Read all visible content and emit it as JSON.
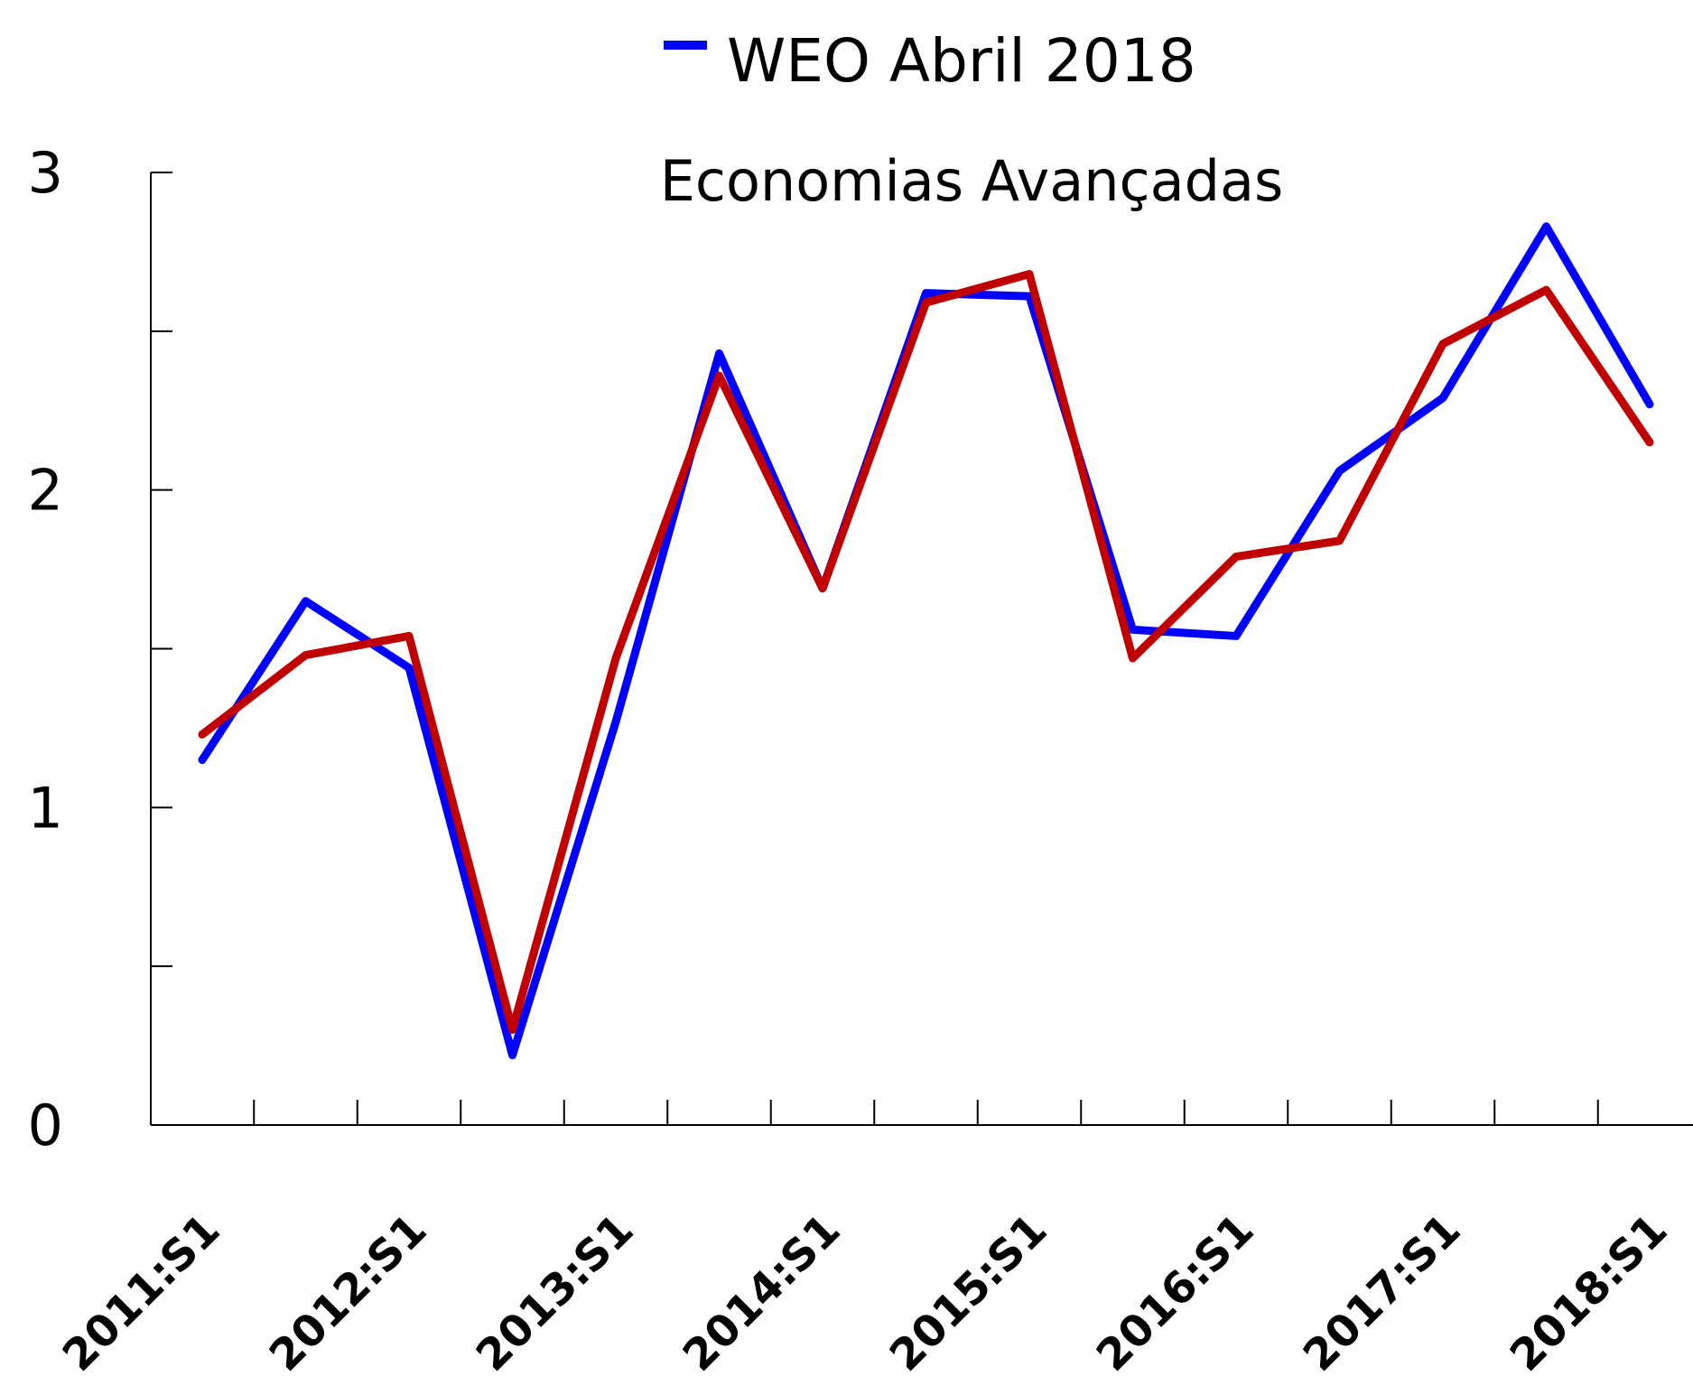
{
  "chart_data": {
    "type": "line",
    "title": "Economias Avançadas",
    "categories": [
      "2011:S1",
      null,
      "2012:S1",
      null,
      "2013:S1",
      null,
      "2014:S1",
      null,
      "2015:S1",
      null,
      "2016:S1",
      null,
      "2017:S1",
      null,
      "2018:S1"
    ],
    "series": [
      {
        "name": "WEO Abril 2018",
        "color": "#0000ff",
        "values": [
          1.15,
          1.65,
          1.44,
          0.22,
          1.27,
          2.43,
          1.69,
          2.62,
          2.61,
          1.56,
          1.54,
          2.06,
          2.29,
          2.83,
          2.27
        ]
      },
      {
        "color": "#c00000",
        "values": [
          1.23,
          1.48,
          1.54,
          0.3,
          1.47,
          2.36,
          1.69,
          2.59,
          2.68,
          1.47,
          1.79,
          1.84,
          2.46,
          2.63,
          2.15
        ]
      }
    ],
    "ylim": [
      0,
      3
    ],
    "yticks": [
      0,
      1,
      2,
      3
    ],
    "yminor_ticks": [
      0.5,
      1.5,
      2.5
    ],
    "grid": false,
    "legend": "top"
  }
}
